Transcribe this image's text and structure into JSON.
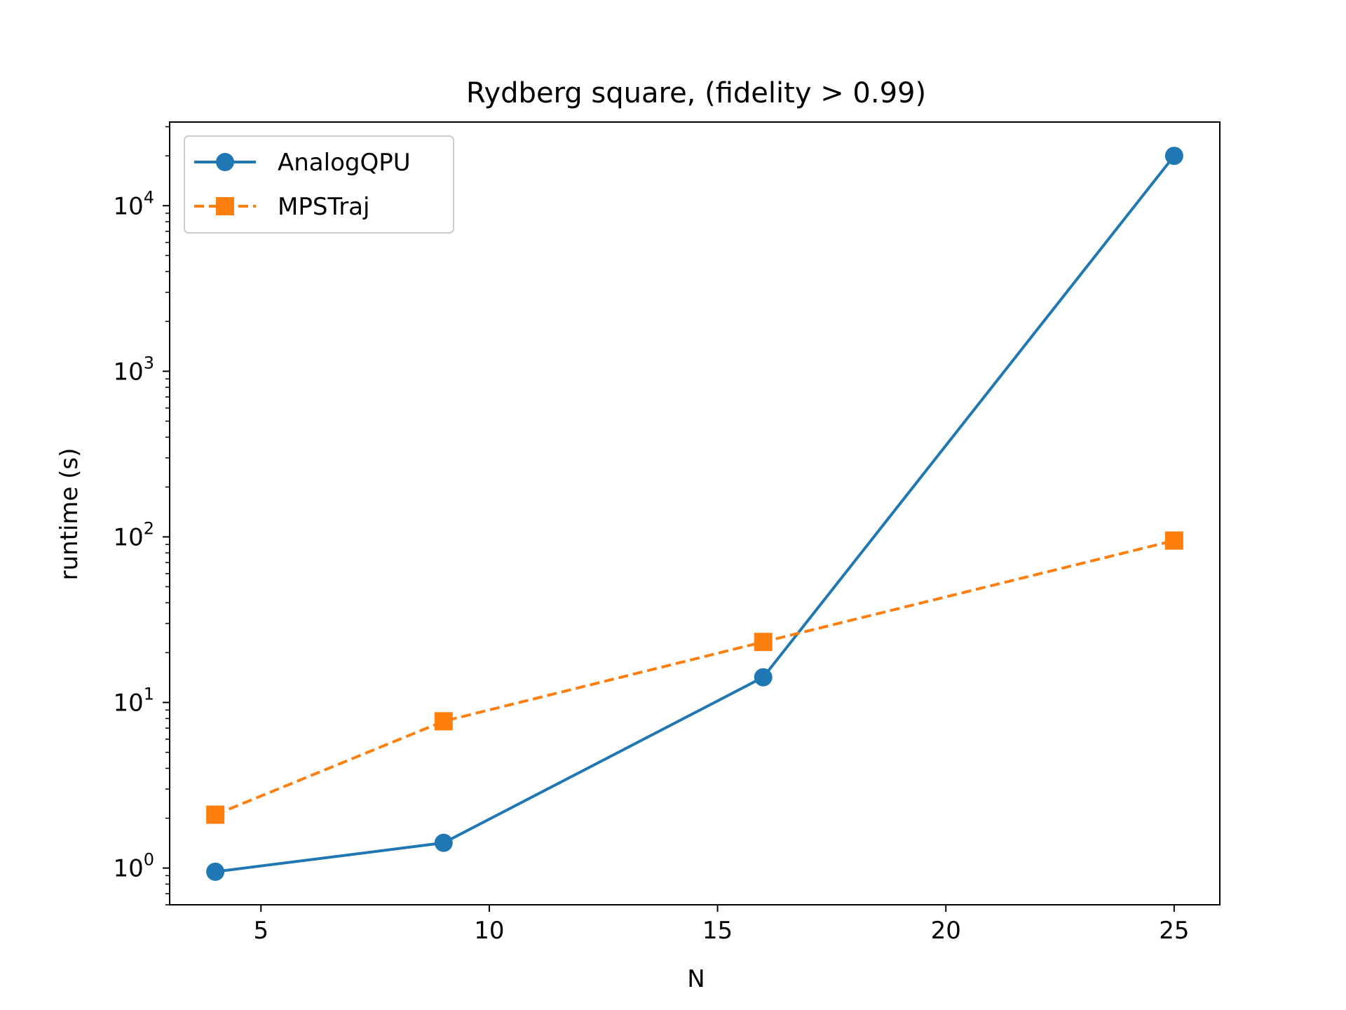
{
  "chart_data": {
    "type": "line",
    "title": "Rydberg square, (fidelity > 0.99)",
    "xlabel": "N",
    "ylabel": "runtime (s)",
    "xlim": [
      3,
      26
    ],
    "ylim": [
      0.6,
      32000
    ],
    "yscale": "log",
    "xticks": [
      5,
      10,
      15,
      20,
      25
    ],
    "yticks": [
      {
        "value": 1,
        "base": "10",
        "exp": "0"
      },
      {
        "value": 10,
        "base": "10",
        "exp": "1"
      },
      {
        "value": 100,
        "base": "10",
        "exp": "2"
      },
      {
        "value": 1000,
        "base": "10",
        "exp": "3"
      },
      {
        "value": 10000,
        "base": "10",
        "exp": "4"
      }
    ],
    "grid": false,
    "legend_position": "top-left",
    "series": [
      {
        "name": "AnalogQPU",
        "color": "#1f77b4",
        "marker": "circle",
        "linestyle": "solid",
        "x": [
          4,
          9,
          16,
          25
        ],
        "y": [
          0.95,
          1.42,
          14.2,
          20000
        ]
      },
      {
        "name": "MPSTraj",
        "color": "#ff7f0e",
        "marker": "square",
        "linestyle": "dashed",
        "x": [
          4,
          9,
          16,
          25
        ],
        "y": [
          2.1,
          7.7,
          23.2,
          95
        ]
      }
    ]
  }
}
